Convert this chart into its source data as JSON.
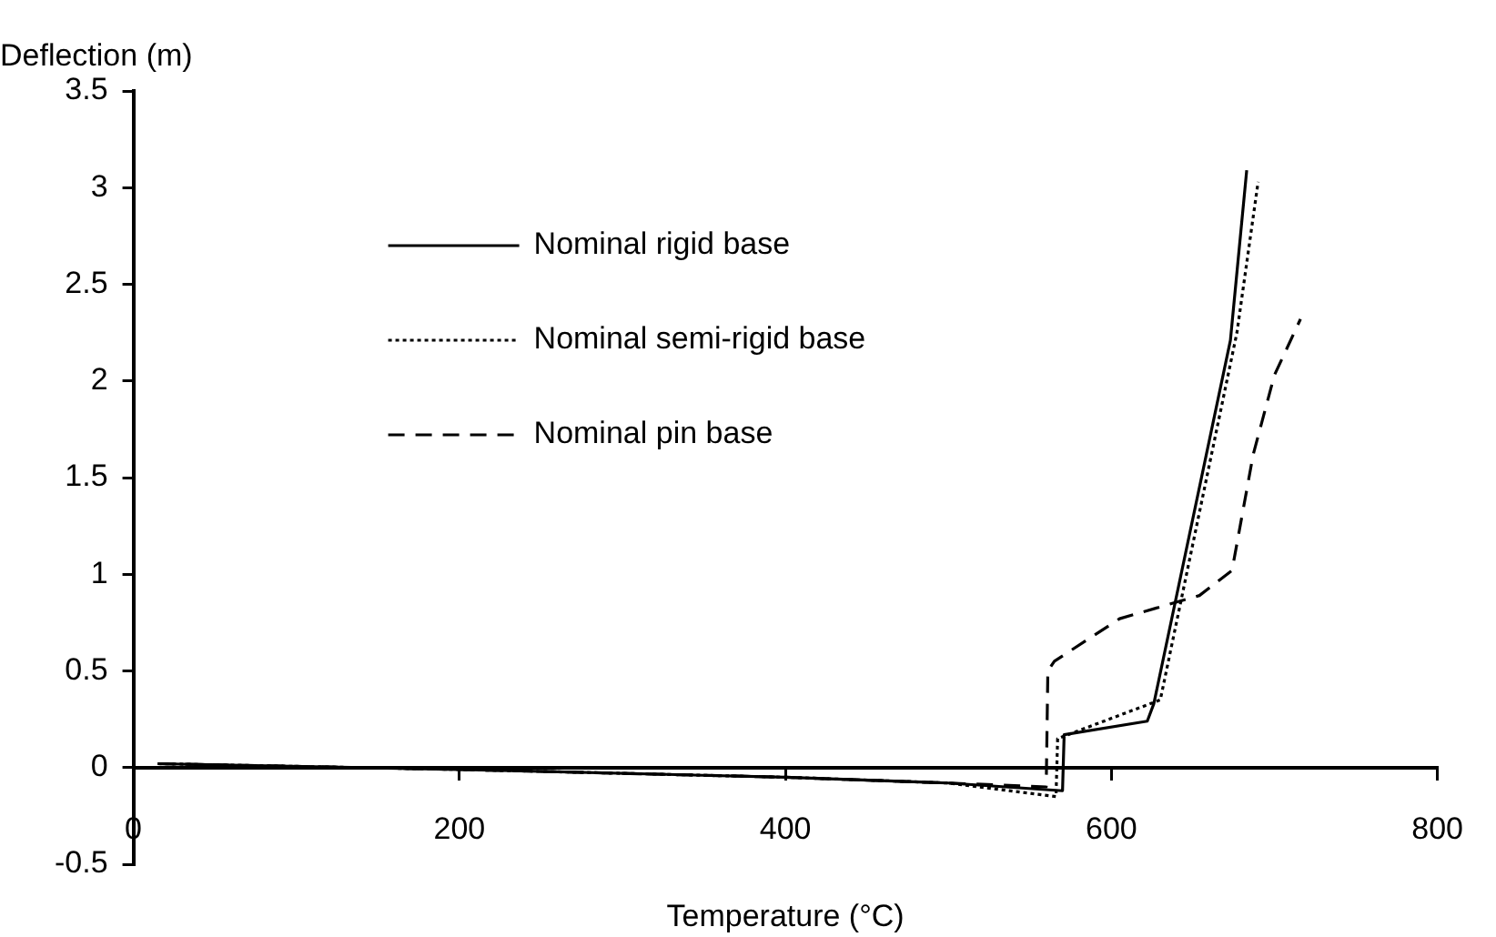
{
  "chart_data": {
    "type": "line",
    "xlabel": "Temperature (°C)",
    "ylabel": "Deflection (m)",
    "xlim": [
      0,
      800
    ],
    "xticks": [
      0,
      200,
      400,
      600,
      800
    ],
    "ylim": [
      -0.5,
      3.5
    ],
    "yticks": [
      -0.5,
      0,
      0.5,
      1,
      1.5,
      2,
      2.5,
      3,
      3.5
    ],
    "grid": false,
    "legend": "top left",
    "marker": "none",
    "series": [
      {
        "name": "Nominal rigid base",
        "color": "#000000",
        "line_style": "solid",
        "x": [
          15,
          200,
          400,
          500,
          570,
          571,
          622,
          626,
          673,
          683
        ],
        "values": [
          0.02,
          -0.01,
          -0.05,
          -0.08,
          -0.12,
          0.17,
          0.24,
          0.33,
          2.21,
          3.09
        ]
      },
      {
        "name": "Nominal semi-rigid base",
        "color": "#000000",
        "line_style": "dotted",
        "x": [
          15,
          200,
          400,
          500,
          566,
          567,
          630,
          677,
          690
        ],
        "values": [
          0.02,
          -0.01,
          -0.05,
          -0.08,
          -0.15,
          0.15,
          0.35,
          2.25,
          3.03
        ]
      },
      {
        "name": "Nominal pin base",
        "color": "#000000",
        "line_style": "dashed",
        "x": [
          15,
          200,
          400,
          500,
          560,
          561,
          565,
          605,
          654,
          674,
          687,
          700,
          716
        ],
        "values": [
          0.02,
          -0.01,
          -0.05,
          -0.08,
          -0.1,
          0.5,
          0.55,
          0.77,
          0.89,
          1.02,
          1.62,
          2.03,
          2.32
        ]
      }
    ]
  }
}
